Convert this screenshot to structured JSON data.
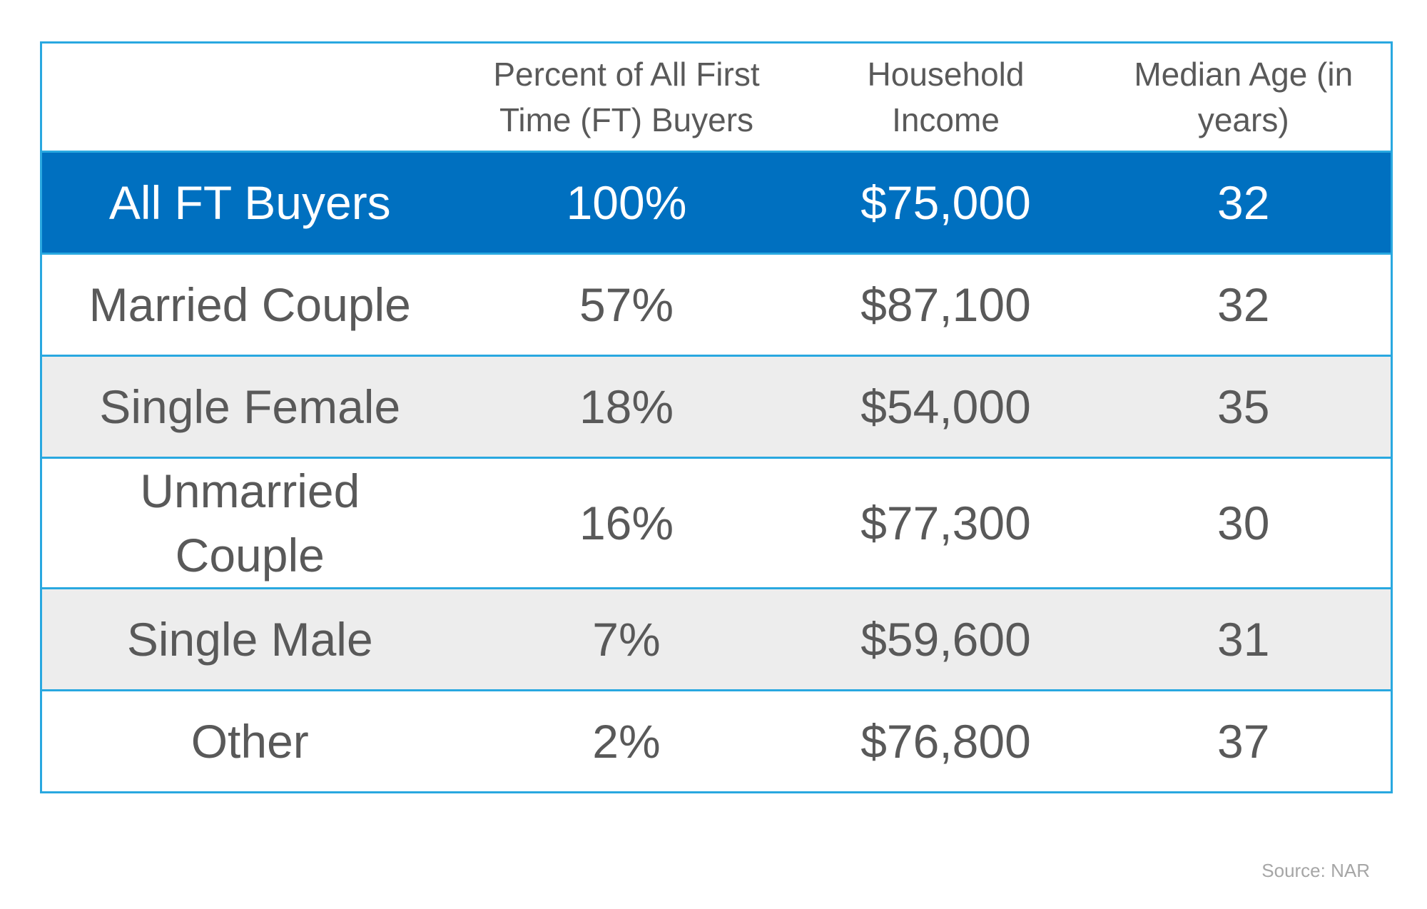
{
  "table": {
    "header": [
      "Percent of All First Time (FT) Buyers",
      "Household Income",
      "Median Age (in years)"
    ],
    "rows": [
      [
        "All FT Buyers",
        "100%",
        "$75,000",
        "32"
      ],
      [
        "Married Couple",
        "57%",
        "$87,100",
        "32"
      ],
      [
        "Single Female",
        "18%",
        "$54,000",
        "35"
      ],
      [
        "Unmarried Couple",
        "16%",
        "$77,300",
        "30"
      ],
      [
        "Single Male",
        "7%",
        "$59,600",
        "31"
      ],
      [
        "Other",
        "2%",
        "$76,800",
        "37"
      ]
    ]
  },
  "source": "Source: NAR"
}
